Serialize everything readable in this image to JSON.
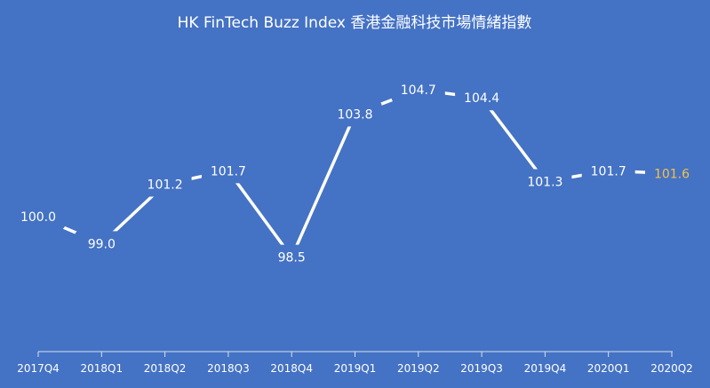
{
  "chart_data": {
    "type": "line",
    "title": "HK FinTech Buzz Index 香港金融科技市場情緒指數",
    "categories": [
      "2017Q4",
      "2018Q1",
      "2018Q2",
      "2018Q3",
      "2018Q4",
      "2019Q1",
      "2019Q2",
      "2019Q3",
      "2019Q4",
      "2020Q1",
      "2020Q2"
    ],
    "series": [
      {
        "values": [
          100.0,
          99.0,
          101.2,
          101.7,
          98.5,
          103.8,
          104.7,
          104.4,
          101.3,
          101.7,
          101.6
        ]
      }
    ],
    "data_labels": [
      "100.0",
      "99.0",
      "101.2",
      "101.7",
      "98.5",
      "103.8",
      "104.7",
      "104.4",
      "101.3",
      "101.7",
      "101.6"
    ],
    "ylim": [
      95,
      105
    ],
    "grid": false,
    "legend": "none",
    "colors": {
      "background": "#4472c4",
      "line": "#ffffff",
      "label": "#ffffff",
      "highlight_label": "#f5c04a"
    }
  }
}
